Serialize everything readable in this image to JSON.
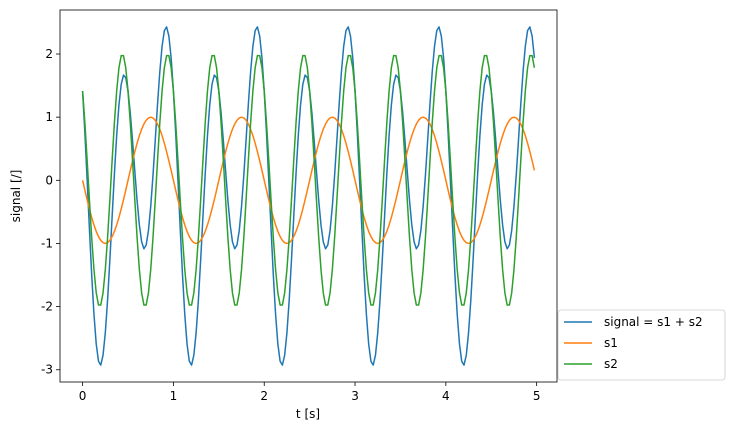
{
  "chart_data": {
    "type": "line",
    "xlabel": "t [s]",
    "ylabel": "signal [/]",
    "xlim": [
      -0.249,
      5.224
    ],
    "ylim": [
      -3.194,
      2.697
    ],
    "xticks": [
      0,
      1,
      2,
      3,
      4,
      5
    ],
    "yticks": [
      -3,
      -2,
      -1,
      0,
      1,
      2
    ],
    "grid": false,
    "legend_loc": "outside lower right",
    "x": [
      0,
      0.025,
      0.05,
      0.075,
      0.1,
      0.125,
      0.15,
      0.175,
      0.2,
      0.225,
      0.25,
      0.275,
      0.3,
      0.325,
      0.35,
      0.375,
      0.4,
      0.425,
      0.45,
      0.475,
      0.5,
      0.525,
      0.55,
      0.575,
      0.6,
      0.625,
      0.65,
      0.675,
      0.7,
      0.725,
      0.75,
      0.775,
      0.8,
      0.825,
      0.85,
      0.875,
      0.9,
      0.925,
      0.95,
      0.975,
      1,
      1.025,
      1.05,
      1.075,
      1.1,
      1.125,
      1.15,
      1.175,
      1.2,
      1.225,
      1.25,
      1.275,
      1.3,
      1.325,
      1.35,
      1.375,
      1.4,
      1.425,
      1.45,
      1.475,
      1.5,
      1.525,
      1.55,
      1.575,
      1.6,
      1.625,
      1.65,
      1.675,
      1.7,
      1.725,
      1.75,
      1.775,
      1.8,
      1.825,
      1.85,
      1.875,
      1.9,
      1.925,
      1.95,
      1.975,
      2,
      2.025,
      2.05,
      2.075,
      2.1,
      2.125,
      2.15,
      2.175,
      2.2,
      2.225,
      2.25,
      2.275,
      2.3,
      2.325,
      2.35,
      2.375,
      2.4,
      2.425,
      2.45,
      2.475,
      2.5,
      2.525,
      2.55,
      2.575,
      2.6,
      2.625,
      2.65,
      2.675,
      2.7,
      2.725,
      2.75,
      2.775,
      2.8,
      2.825,
      2.85,
      2.875,
      2.9,
      2.925,
      2.95,
      2.975,
      3,
      3.025,
      3.05,
      3.075,
      3.1,
      3.125,
      3.15,
      3.175,
      3.2,
      3.225,
      3.25,
      3.275,
      3.3,
      3.325,
      3.35,
      3.375,
      3.4,
      3.425,
      3.45,
      3.475,
      3.5,
      3.525,
      3.55,
      3.575,
      3.6,
      3.625,
      3.65,
      3.675,
      3.7,
      3.725,
      3.75,
      3.775,
      3.8,
      3.825,
      3.85,
      3.875,
      3.9,
      3.925,
      3.95,
      3.975,
      4,
      4.025,
      4.05,
      4.075,
      4.1,
      4.125,
      4.15,
      4.175,
      4.2,
      4.225,
      4.25,
      4.275,
      4.3,
      4.325,
      4.35,
      4.375,
      4.4,
      4.425,
      4.45,
      4.475,
      4.5,
      4.525,
      4.55,
      4.575,
      4.6,
      4.625,
      4.65,
      4.675,
      4.7,
      4.725,
      4.75,
      4.775,
      4.8,
      4.825,
      4.85,
      4.875,
      4.9,
      4.925,
      4.95,
      4.975
    ],
    "series": [
      {
        "name": "signal = s1 + s2",
        "color": "#1f77b4",
        "values": [
          1.414,
          0.752,
          0.004,
          -0.767,
          -1.496,
          -2.121,
          -2.591,
          -2.866,
          -2.926,
          -2.77,
          -2.414,
          -1.896,
          -1.264,
          -0.578,
          0.099,
          0.707,
          1.194,
          1.521,
          1.666,
          1.626,
          1.414,
          1.064,
          0.622,
          0.141,
          -0.32,
          -0.707,
          -0.973,
          -1.084,
          -1.024,
          -0.794,
          -0.414,
          0.08,
          0.638,
          1.204,
          1.717,
          2.121,
          2.37,
          2.429,
          2.284,
          1.938,
          1.414,
          0.752,
          0.004,
          -0.767,
          -1.496,
          -2.121,
          -2.591,
          -2.866,
          -2.926,
          -2.77,
          -2.414,
          -1.896,
          -1.264,
          -0.578,
          0.099,
          0.707,
          1.194,
          1.521,
          1.666,
          1.626,
          1.414,
          1.064,
          0.622,
          0.141,
          -0.32,
          -0.707,
          -0.973,
          -1.084,
          -1.024,
          -0.794,
          -0.414,
          0.08,
          0.638,
          1.204,
          1.717,
          2.121,
          2.37,
          2.429,
          2.284,
          1.938,
          1.414,
          0.752,
          0.004,
          -0.767,
          -1.496,
          -2.121,
          -2.591,
          -2.866,
          -2.926,
          -2.77,
          -2.414,
          -1.896,
          -1.264,
          -0.578,
          0.099,
          0.707,
          1.194,
          1.521,
          1.666,
          1.626,
          1.414,
          1.064,
          0.622,
          0.141,
          -0.32,
          -0.707,
          -0.973,
          -1.084,
          -1.024,
          -0.794,
          -0.414,
          0.08,
          0.638,
          1.204,
          1.717,
          2.121,
          2.37,
          2.429,
          2.284,
          1.938,
          1.414,
          0.752,
          0.004,
          -0.767,
          -1.496,
          -2.121,
          -2.591,
          -2.866,
          -2.926,
          -2.77,
          -2.414,
          -1.896,
          -1.264,
          -0.578,
          0.099,
          0.707,
          1.194,
          1.521,
          1.666,
          1.626,
          1.414,
          1.064,
          0.622,
          0.141,
          -0.32,
          -0.707,
          -0.973,
          -1.084,
          -1.024,
          -0.794,
          -0.414,
          0.08,
          0.638,
          1.204,
          1.717,
          2.121,
          2.37,
          2.429,
          2.284,
          1.938,
          1.414,
          0.752,
          0.004,
          -0.767,
          -1.496,
          -2.121,
          -2.591,
          -2.866,
          -2.926,
          -2.77,
          -2.414,
          -1.896,
          -1.264,
          -0.578,
          0.099,
          0.707,
          1.194,
          1.521,
          1.666,
          1.626,
          1.414,
          1.064,
          0.622,
          0.141,
          -0.32,
          -0.707,
          -0.973,
          -1.084,
          -1.024,
          -0.794,
          -0.414,
          0.08,
          0.638,
          1.204,
          1.717,
          2.121,
          2.37,
          2.429,
          2.284,
          1.938
        ]
      },
      {
        "name": "s1",
        "color": "#ff7f0e",
        "values": [
          0,
          -0.156,
          -0.309,
          -0.454,
          -0.588,
          -0.707,
          -0.809,
          -0.891,
          -0.951,
          -0.988,
          -1,
          -0.988,
          -0.951,
          -0.891,
          -0.809,
          -0.707,
          -0.588,
          -0.454,
          -0.309,
          -0.156,
          0,
          0.156,
          0.309,
          0.454,
          0.588,
          0.707,
          0.809,
          0.891,
          0.951,
          0.988,
          1,
          0.988,
          0.951,
          0.891,
          0.809,
          0.707,
          0.588,
          0.454,
          0.309,
          0.156,
          0,
          -0.156,
          -0.309,
          -0.454,
          -0.588,
          -0.707,
          -0.809,
          -0.891,
          -0.951,
          -0.988,
          -1,
          -0.988,
          -0.951,
          -0.891,
          -0.809,
          -0.707,
          -0.588,
          -0.454,
          -0.309,
          -0.156,
          0,
          0.156,
          0.309,
          0.454,
          0.588,
          0.707,
          0.809,
          0.891,
          0.951,
          0.988,
          1,
          0.988,
          0.951,
          0.891,
          0.809,
          0.707,
          0.588,
          0.454,
          0.309,
          0.156,
          0,
          -0.156,
          -0.309,
          -0.454,
          -0.588,
          -0.707,
          -0.809,
          -0.891,
          -0.951,
          -0.988,
          -1,
          -0.988,
          -0.951,
          -0.891,
          -0.809,
          -0.707,
          -0.588,
          -0.454,
          -0.309,
          -0.156,
          0,
          0.156,
          0.309,
          0.454,
          0.588,
          0.707,
          0.809,
          0.891,
          0.951,
          0.988,
          1,
          0.988,
          0.951,
          0.891,
          0.809,
          0.707,
          0.588,
          0.454,
          0.309,
          0.156,
          0,
          -0.156,
          -0.309,
          -0.454,
          -0.588,
          -0.707,
          -0.809,
          -0.891,
          -0.951,
          -0.988,
          -1,
          -0.988,
          -0.951,
          -0.891,
          -0.809,
          -0.707,
          -0.588,
          -0.454,
          -0.309,
          -0.156,
          0,
          0.156,
          0.309,
          0.454,
          0.588,
          0.707,
          0.809,
          0.891,
          0.951,
          0.988,
          1,
          0.988,
          0.951,
          0.891,
          0.809,
          0.707,
          0.588,
          0.454,
          0.309,
          0.156,
          0,
          -0.156,
          -0.309,
          -0.454,
          -0.588,
          -0.707,
          -0.809,
          -0.891,
          -0.951,
          -0.988,
          -1,
          -0.988,
          -0.951,
          -0.891,
          -0.809,
          -0.707,
          -0.588,
          -0.454,
          -0.309,
          -0.156,
          0,
          0.156,
          0.309,
          0.454,
          0.588,
          0.707,
          0.809,
          0.891,
          0.951,
          0.988,
          1,
          0.988,
          0.951,
          0.891,
          0.809,
          0.707,
          0.588,
          0.454,
          0.309,
          0.156
        ]
      },
      {
        "name": "s2",
        "color": "#2ca02c",
        "values": [
          1.414,
          0.908,
          0.313,
          -0.313,
          -0.908,
          -1.414,
          -1.782,
          -1.975,
          -1.975,
          -1.782,
          -1.414,
          -0.908,
          -0.313,
          0.313,
          0.908,
          1.414,
          1.782,
          1.975,
          1.975,
          1.782,
          1.414,
          0.908,
          0.313,
          -0.313,
          -0.908,
          -1.414,
          -1.782,
          -1.975,
          -1.975,
          -1.782,
          -1.414,
          -0.908,
          -0.313,
          0.313,
          0.908,
          1.414,
          1.782,
          1.975,
          1.975,
          1.782,
          1.414,
          0.908,
          0.313,
          -0.313,
          -0.908,
          -1.414,
          -1.782,
          -1.975,
          -1.975,
          -1.782,
          -1.414,
          -0.908,
          -0.313,
          0.313,
          0.908,
          1.414,
          1.782,
          1.975,
          1.975,
          1.782,
          1.414,
          0.908,
          0.313,
          -0.313,
          -0.908,
          -1.414,
          -1.782,
          -1.975,
          -1.975,
          -1.782,
          -1.414,
          -0.908,
          -0.313,
          0.313,
          0.908,
          1.414,
          1.782,
          1.975,
          1.975,
          1.782,
          1.414,
          0.908,
          0.313,
          -0.313,
          -0.908,
          -1.414,
          -1.782,
          -1.975,
          -1.975,
          -1.782,
          -1.414,
          -0.908,
          -0.313,
          0.313,
          0.908,
          1.414,
          1.782,
          1.975,
          1.975,
          1.782,
          1.414,
          0.908,
          0.313,
          -0.313,
          -0.908,
          -1.414,
          -1.782,
          -1.975,
          -1.975,
          -1.782,
          -1.414,
          -0.908,
          -0.313,
          0.313,
          0.908,
          1.414,
          1.782,
          1.975,
          1.975,
          1.782,
          1.414,
          0.908,
          0.313,
          -0.313,
          -0.908,
          -1.414,
          -1.782,
          -1.975,
          -1.975,
          -1.782,
          -1.414,
          -0.908,
          -0.313,
          0.313,
          0.908,
          1.414,
          1.782,
          1.975,
          1.975,
          1.782,
          1.414,
          0.908,
          0.313,
          -0.313,
          -0.908,
          -1.414,
          -1.782,
          -1.975,
          -1.975,
          -1.782,
          -1.414,
          -0.908,
          -0.313,
          0.313,
          0.908,
          1.414,
          1.782,
          1.975,
          1.975,
          1.782,
          1.414,
          0.908,
          0.313,
          -0.313,
          -0.908,
          -1.414,
          -1.782,
          -1.975,
          -1.975,
          -1.782,
          -1.414,
          -0.908,
          -0.313,
          0.313,
          0.908,
          1.414,
          1.782,
          1.975,
          1.975,
          1.782,
          1.414,
          0.908,
          0.313,
          -0.313,
          -0.908,
          -1.414,
          -1.782,
          -1.975,
          -1.975,
          -1.782,
          -1.414,
          -0.908,
          -0.313,
          0.313,
          0.908,
          1.414,
          1.782,
          1.975,
          1.975,
          1.782
        ]
      }
    ]
  }
}
